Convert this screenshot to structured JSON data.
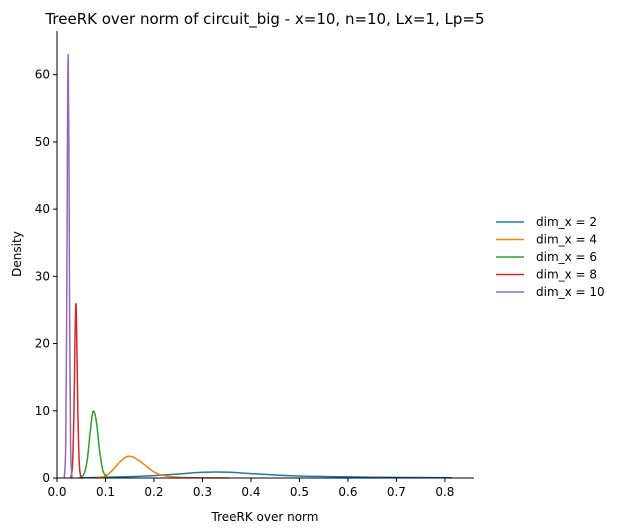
{
  "chart_data": {
    "type": "line",
    "title": "TreeRK over norm of circuit_big - x=10, n=10, Lx=1, Lp=5",
    "xlabel": "TreeRK over norm",
    "ylabel": "Density",
    "xlim": [
      0.0,
      0.86
    ],
    "ylim": [
      0,
      66.5
    ],
    "xticks": [
      "0.0",
      "0.1",
      "0.2",
      "0.3",
      "0.4",
      "0.5",
      "0.6",
      "0.7",
      "0.8"
    ],
    "xtick_values": [
      0.0,
      0.1,
      0.2,
      0.3,
      0.4,
      0.5,
      0.6,
      0.7,
      0.8
    ],
    "yticks": [
      "0",
      "10",
      "20",
      "30",
      "40",
      "50",
      "60"
    ],
    "ytick_values": [
      0,
      10,
      20,
      30,
      40,
      50,
      60
    ],
    "grid": false,
    "legend_position": "right",
    "series": [
      {
        "name": "dim_x = 2",
        "color": "#1f77b4",
        "x": [
          0.05,
          0.08,
          0.1,
          0.15,
          0.2,
          0.25,
          0.3,
          0.33,
          0.36,
          0.4,
          0.45,
          0.5,
          0.55,
          0.6,
          0.65,
          0.7,
          0.75,
          0.8,
          0.815
        ],
        "y": [
          0.02,
          0.08,
          0.12,
          0.2,
          0.35,
          0.6,
          0.85,
          0.9,
          0.85,
          0.65,
          0.45,
          0.3,
          0.22,
          0.16,
          0.12,
          0.09,
          0.07,
          0.05,
          0.04
        ]
      },
      {
        "name": "dim_x = 4",
        "color": "#ff7f0e",
        "x": [
          0.08,
          0.1,
          0.115,
          0.13,
          0.145,
          0.16,
          0.18,
          0.2,
          0.22,
          0.25,
          0.28,
          0.32,
          0.355
        ],
        "y": [
          0.0,
          0.3,
          1.2,
          2.4,
          3.2,
          3.0,
          2.0,
          0.9,
          0.35,
          0.12,
          0.05,
          0.02,
          0.0
        ]
      },
      {
        "name": "dim_x = 6",
        "color": "#2ca02c",
        "x": [
          0.045,
          0.055,
          0.062,
          0.068,
          0.073,
          0.077,
          0.082,
          0.088,
          0.095,
          0.105
        ],
        "y": [
          0.0,
          0.5,
          2.5,
          6.5,
          9.5,
          9.8,
          8.0,
          4.0,
          1.0,
          0.0
        ]
      },
      {
        "name": "dim_x = 8",
        "color": "#d62728",
        "x": [
          0.028,
          0.032,
          0.035,
          0.037,
          0.039,
          0.041,
          0.043,
          0.046,
          0.05
        ],
        "y": [
          0.0,
          2.0,
          10.0,
          20.0,
          26.0,
          20.0,
          10.0,
          2.0,
          0.0
        ]
      },
      {
        "name": "dim_x = 10",
        "color": "#9467bd",
        "x": [
          0.015,
          0.018,
          0.02,
          0.0215,
          0.023,
          0.0245,
          0.026,
          0.028,
          0.031
        ],
        "y": [
          0.0,
          5.0,
          25.0,
          50.0,
          63.0,
          50.0,
          25.0,
          5.0,
          0.0
        ]
      }
    ]
  }
}
